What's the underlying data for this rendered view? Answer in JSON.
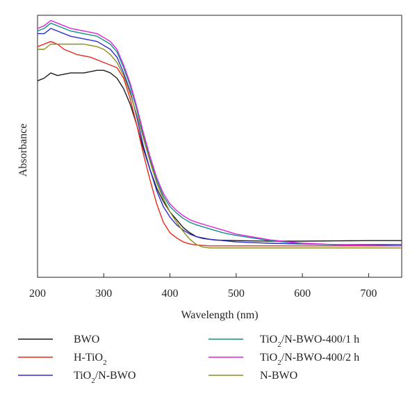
{
  "chart_data": {
    "type": "line",
    "title": "",
    "xlabel": "Wavelength (nm)",
    "ylabel": "Absorbance",
    "xlim": [
      200,
      750
    ],
    "ylim": [
      0,
      1
    ],
    "xticks": [
      200,
      300,
      400,
      500,
      600,
      700
    ],
    "xtick_labels": [
      "200",
      "300",
      "400",
      "500",
      "600",
      "700"
    ],
    "grid": false,
    "legend_position": "bottom",
    "series": [
      {
        "name": "BWO",
        "name_main": "BWO",
        "name_sub": "",
        "name_rest": "",
        "color": "#1a1a1a",
        "x": [
          200,
          210,
          220,
          230,
          250,
          270,
          290,
          300,
          310,
          320,
          330,
          340,
          350,
          360,
          370,
          380,
          390,
          400,
          410,
          420,
          430,
          440,
          450,
          470,
          500,
          550,
          600,
          650,
          700,
          750
        ],
        "y": [
          0.75,
          0.76,
          0.78,
          0.77,
          0.78,
          0.78,
          0.79,
          0.79,
          0.78,
          0.76,
          0.72,
          0.66,
          0.58,
          0.49,
          0.41,
          0.34,
          0.29,
          0.25,
          0.22,
          0.19,
          0.17,
          0.155,
          0.148,
          0.142,
          0.14,
          0.138,
          0.138,
          0.139,
          0.14,
          0.14
        ]
      },
      {
        "name": "H-TiO2",
        "name_main": "H-TiO",
        "name_sub": "2",
        "name_rest": "",
        "color": "#e8281e",
        "x": [
          200,
          210,
          220,
          230,
          240,
          260,
          280,
          300,
          320,
          330,
          340,
          350,
          360,
          370,
          380,
          390,
          400,
          410,
          420,
          430,
          440,
          460,
          500,
          550,
          600,
          650,
          700,
          750
        ],
        "y": [
          0.88,
          0.89,
          0.9,
          0.89,
          0.87,
          0.85,
          0.84,
          0.82,
          0.8,
          0.76,
          0.68,
          0.58,
          0.47,
          0.37,
          0.28,
          0.21,
          0.17,
          0.15,
          0.135,
          0.127,
          0.123,
          0.12,
          0.12,
          0.12,
          0.12,
          0.12,
          0.12,
          0.12
        ]
      },
      {
        "name": "TiO2/N-BWO",
        "name_main": "TiO",
        "name_sub": "2",
        "name_rest": "/N-BWO",
        "color": "#2b2bcc",
        "x": [
          200,
          210,
          220,
          230,
          250,
          270,
          290,
          310,
          320,
          330,
          340,
          350,
          360,
          370,
          380,
          390,
          400,
          410,
          420,
          430,
          440,
          460,
          500,
          550,
          600,
          650,
          700,
          750
        ],
        "y": [
          0.93,
          0.93,
          0.95,
          0.94,
          0.92,
          0.91,
          0.9,
          0.87,
          0.84,
          0.78,
          0.71,
          0.61,
          0.5,
          0.41,
          0.33,
          0.27,
          0.23,
          0.2,
          0.18,
          0.165,
          0.155,
          0.145,
          0.135,
          0.13,
          0.127,
          0.125,
          0.125,
          0.125
        ]
      },
      {
        "name": "TiO2/N-BWO-400/1 h",
        "name_main": "TiO",
        "name_sub": "2",
        "name_rest": "/N-BWO-400/1 h",
        "color": "#0e8f86",
        "x": [
          200,
          210,
          220,
          230,
          250,
          270,
          290,
          310,
          320,
          330,
          340,
          350,
          360,
          370,
          380,
          390,
          400,
          410,
          420,
          430,
          440,
          460,
          480,
          500,
          550,
          600,
          650,
          700,
          750
        ],
        "y": [
          0.94,
          0.95,
          0.97,
          0.96,
          0.94,
          0.93,
          0.92,
          0.89,
          0.86,
          0.8,
          0.73,
          0.64,
          0.54,
          0.45,
          0.37,
          0.31,
          0.27,
          0.245,
          0.225,
          0.21,
          0.2,
          0.185,
          0.17,
          0.16,
          0.14,
          0.128,
          0.124,
          0.122,
          0.12
        ]
      },
      {
        "name": "TiO2/N-BWO-400/2 h",
        "name_main": "TiO",
        "name_sub": "2",
        "name_rest": "/N-BWO-400/2 h",
        "color": "#dd22dd",
        "x": [
          200,
          210,
          220,
          230,
          250,
          270,
          290,
          310,
          320,
          330,
          340,
          350,
          360,
          370,
          380,
          390,
          400,
          410,
          420,
          430,
          440,
          460,
          480,
          500,
          550,
          600,
          650,
          700,
          750
        ],
        "y": [
          0.95,
          0.96,
          0.98,
          0.97,
          0.95,
          0.94,
          0.93,
          0.9,
          0.87,
          0.81,
          0.74,
          0.65,
          0.55,
          0.46,
          0.38,
          0.32,
          0.28,
          0.255,
          0.235,
          0.22,
          0.21,
          0.195,
          0.18,
          0.165,
          0.143,
          0.13,
          0.125,
          0.122,
          0.12
        ]
      },
      {
        "name": "N-BWO",
        "name_main": "N-BWO",
        "name_sub": "",
        "name_rest": "",
        "color": "#8c8c1c",
        "x": [
          200,
          210,
          220,
          230,
          250,
          270,
          290,
          300,
          310,
          320,
          330,
          340,
          350,
          360,
          370,
          380,
          390,
          400,
          410,
          420,
          430,
          440,
          450,
          460,
          500,
          550,
          600,
          650,
          700,
          750
        ],
        "y": [
          0.87,
          0.87,
          0.89,
          0.89,
          0.89,
          0.89,
          0.88,
          0.87,
          0.85,
          0.82,
          0.77,
          0.7,
          0.62,
          0.53,
          0.44,
          0.36,
          0.3,
          0.25,
          0.21,
          0.175,
          0.145,
          0.125,
          0.115,
          0.112,
          0.112,
          0.112,
          0.112,
          0.112,
          0.112,
          0.112
        ]
      }
    ]
  }
}
